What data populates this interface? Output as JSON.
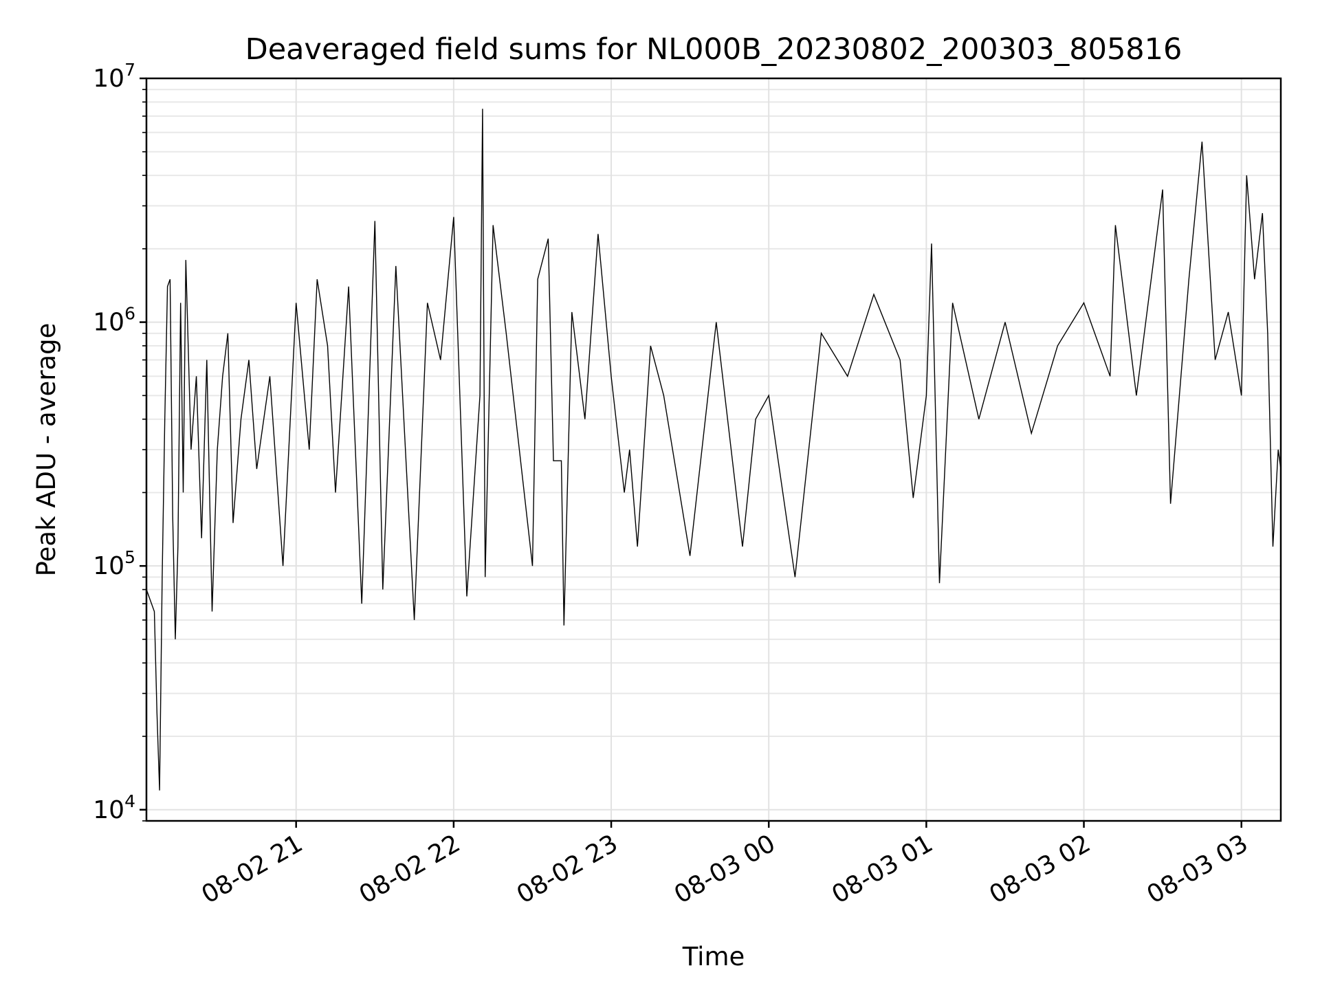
{
  "chart_data": {
    "type": "line",
    "title": "Deaveraged field sums for NL000B_20230802_200303_805816",
    "xlabel": "Time",
    "ylabel": "Peak ADU - average",
    "yscale": "log",
    "ylim": [
      9000,
      10000000
    ],
    "xlim": [
      "2023-08-02 20:03",
      "2023-08-03 03:15"
    ],
    "grid": true,
    "line_color": "#000000",
    "x_ticks": [
      {
        "label": "08-02 21",
        "time": "2023-08-02 21:00"
      },
      {
        "label": "08-02 22",
        "time": "2023-08-02 22:00"
      },
      {
        "label": "08-02 23",
        "time": "2023-08-02 23:00"
      },
      {
        "label": "08-03 00",
        "time": "2023-08-03 00:00"
      },
      {
        "label": "08-03 01",
        "time": "2023-08-03 01:00"
      },
      {
        "label": "08-03 02",
        "time": "2023-08-03 02:00"
      },
      {
        "label": "08-03 03",
        "time": "2023-08-03 03:00"
      }
    ],
    "y_ticks": [
      {
        "base": "10",
        "exp": "4",
        "value": 10000
      },
      {
        "base": "10",
        "exp": "5",
        "value": 100000
      },
      {
        "base": "10",
        "exp": "6",
        "value": 1000000
      },
      {
        "base": "10",
        "exp": "7",
        "value": 10000000
      }
    ],
    "series": [
      {
        "x": [
          "2023-08-02 20:03",
          "2023-08-02 20:06",
          "2023-08-02 20:07",
          "2023-08-02 20:08",
          "2023-08-02 20:09",
          "2023-08-02 20:10",
          "2023-08-02 20:11",
          "2023-08-02 20:12",
          "2023-08-02 20:13",
          "2023-08-02 20:14",
          "2023-08-02 20:15",
          "2023-08-02 20:16",
          "2023-08-02 20:17",
          "2023-08-02 20:18",
          "2023-08-02 20:20",
          "2023-08-02 20:22",
          "2023-08-02 20:24",
          "2023-08-02 20:26",
          "2023-08-02 20:28",
          "2023-08-02 20:30",
          "2023-08-02 20:32",
          "2023-08-02 20:34",
          "2023-08-02 20:36",
          "2023-08-02 20:39",
          "2023-08-02 20:42",
          "2023-08-02 20:45",
          "2023-08-02 20:50",
          "2023-08-02 20:55",
          "2023-08-02 21:00",
          "2023-08-02 21:05",
          "2023-08-02 21:08",
          "2023-08-02 21:12",
          "2023-08-02 21:15",
          "2023-08-02 21:20",
          "2023-08-02 21:25",
          "2023-08-02 21:30",
          "2023-08-02 21:33",
          "2023-08-02 21:38",
          "2023-08-02 21:45",
          "2023-08-02 21:50",
          "2023-08-02 21:55",
          "2023-08-02 22:00",
          "2023-08-02 22:05",
          "2023-08-02 22:10",
          "2023-08-02 22:11",
          "2023-08-02 22:12",
          "2023-08-02 22:15",
          "2023-08-02 22:20",
          "2023-08-02 22:30",
          "2023-08-02 22:32",
          "2023-08-02 22:36",
          "2023-08-02 22:38",
          "2023-08-02 22:41",
          "2023-08-02 22:42",
          "2023-08-02 22:45",
          "2023-08-02 22:50",
          "2023-08-02 22:55",
          "2023-08-02 23:00",
          "2023-08-02 23:05",
          "2023-08-02 23:07",
          "2023-08-02 23:10",
          "2023-08-02 23:15",
          "2023-08-02 23:20",
          "2023-08-02 23:30",
          "2023-08-02 23:40",
          "2023-08-02 23:50",
          "2023-08-02 23:55",
          "2023-08-03 00:00",
          "2023-08-03 00:10",
          "2023-08-03 00:20",
          "2023-08-03 00:30",
          "2023-08-03 00:40",
          "2023-08-03 00:50",
          "2023-08-03 00:55",
          "2023-08-03 01:00",
          "2023-08-03 01:02",
          "2023-08-03 01:05",
          "2023-08-03 01:10",
          "2023-08-03 01:20",
          "2023-08-03 01:30",
          "2023-08-03 01:40",
          "2023-08-03 01:50",
          "2023-08-03 02:00",
          "2023-08-03 02:10",
          "2023-08-03 02:12",
          "2023-08-03 02:20",
          "2023-08-03 02:30",
          "2023-08-03 02:33",
          "2023-08-03 02:40",
          "2023-08-03 02:45",
          "2023-08-03 02:50",
          "2023-08-03 02:55",
          "2023-08-03 03:00",
          "2023-08-03 03:02",
          "2023-08-03 03:05",
          "2023-08-03 03:08",
          "2023-08-03 03:10",
          "2023-08-03 03:12",
          "2023-08-03 03:14",
          "2023-08-03 03:15"
        ],
        "y": [
          80000,
          65000,
          25000,
          12000,
          90000,
          400000,
          1400000,
          1500000,
          160000,
          50000,
          120000,
          1200000,
          200000,
          1800000,
          300000,
          600000,
          130000,
          700000,
          65000,
          300000,
          600000,
          900000,
          150000,
          400000,
          700000,
          250000,
          600000,
          100000,
          1200000,
          300000,
          1500000,
          800000,
          200000,
          1400000,
          70000,
          2600000,
          80000,
          1700000,
          60000,
          1200000,
          700000,
          2700000,
          75000,
          500000,
          7500000,
          90000,
          2500000,
          900000,
          100000,
          1500000,
          2200000,
          270000,
          270000,
          57000,
          1100000,
          400000,
          2300000,
          600000,
          200000,
          300000,
          120000,
          800000,
          500000,
          110000,
          1000000,
          120000,
          400000,
          500000,
          90000,
          900000,
          600000,
          1300000,
          700000,
          190000,
          500000,
          2100000,
          85000,
          1200000,
          400000,
          1000000,
          350000,
          800000,
          1200000,
          600000,
          2500000,
          500000,
          3500000,
          180000,
          1500000,
          5500000,
          700000,
          1100000,
          500000,
          4000000,
          1500000,
          2800000,
          900000,
          120000,
          300000,
          250000
        ]
      }
    ]
  }
}
